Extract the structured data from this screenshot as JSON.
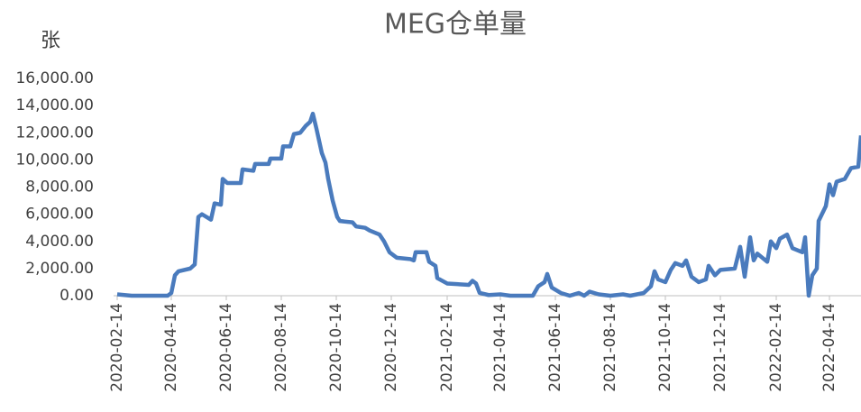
{
  "chart_data": {
    "type": "line",
    "title": "MEG仓单量",
    "y_label": "张",
    "series": [
      {
        "name": "MEG仓单量",
        "color": "#4a7bbd",
        "x": [
          "2020-02-14",
          "2020-03-01",
          "2020-04-10",
          "2020-04-14",
          "2020-04-18",
          "2020-04-22",
          "2020-05-05",
          "2020-05-10",
          "2020-05-14",
          "2020-05-18",
          "2020-05-28",
          "2020-06-01",
          "2020-06-08",
          "2020-06-10",
          "2020-06-15",
          "2020-06-30",
          "2020-07-02",
          "2020-07-14",
          "2020-07-16",
          "2020-07-31",
          "2020-08-02",
          "2020-08-14",
          "2020-08-16",
          "2020-08-24",
          "2020-08-28",
          "2020-09-04",
          "2020-09-10",
          "2020-09-15",
          "2020-09-18",
          "2020-09-22",
          "2020-09-28",
          "2020-10-02",
          "2020-10-05",
          "2020-10-10",
          "2020-10-15",
          "2020-10-18",
          "2020-11-01",
          "2020-11-05",
          "2020-11-15",
          "2020-11-20",
          "2020-12-01",
          "2020-12-06",
          "2020-12-12",
          "2020-12-20",
          "2021-01-04",
          "2021-01-08",
          "2021-01-10",
          "2021-01-22",
          "2021-01-25",
          "2021-02-01",
          "2021-02-03",
          "2021-02-14",
          "2021-03-10",
          "2021-03-14",
          "2021-03-18",
          "2021-03-22",
          "2021-04-01",
          "2021-04-14",
          "2021-04-25",
          "2021-05-20",
          "2021-05-26",
          "2021-06-02",
          "2021-06-05",
          "2021-06-10",
          "2021-06-20",
          "2021-06-30",
          "2021-07-10",
          "2021-07-16",
          "2021-07-22",
          "2021-08-01",
          "2021-08-14",
          "2021-08-28",
          "2021-09-05",
          "2021-09-20",
          "2021-09-28",
          "2021-10-02",
          "2021-10-06",
          "2021-10-14",
          "2021-10-20",
          "2021-10-25",
          "2021-11-02",
          "2021-11-06",
          "2021-11-12",
          "2021-11-20",
          "2021-11-28",
          "2021-12-01",
          "2021-12-08",
          "2021-12-14",
          "2021-12-30",
          "2022-01-05",
          "2022-01-10",
          "2022-01-16",
          "2022-01-20",
          "2022-01-24",
          "2022-02-04",
          "2022-02-08",
          "2022-02-14",
          "2022-02-18",
          "2022-02-26",
          "2022-03-04",
          "2022-03-15",
          "2022-03-18",
          "2022-03-22",
          "2022-03-26",
          "2022-03-31",
          "2022-04-02",
          "2022-04-10",
          "2022-04-14",
          "2022-04-18",
          "2022-04-22",
          "2022-05-01",
          "2022-05-08",
          "2022-05-16",
          "2022-05-19"
        ],
        "values": [
          100,
          0,
          0,
          200,
          1500,
          1800,
          2000,
          2300,
          5800,
          6000,
          5600,
          6800,
          6700,
          8600,
          8300,
          8300,
          9300,
          9200,
          9700,
          9700,
          10100,
          10100,
          11000,
          11000,
          11900,
          12000,
          12500,
          12800,
          13400,
          12300,
          10500,
          9800,
          8600,
          7000,
          5800,
          5500,
          5400,
          5100,
          5000,
          4800,
          4500,
          4000,
          3200,
          2800,
          2700,
          2600,
          3200,
          3200,
          2500,
          2200,
          1300,
          900,
          800,
          1100,
          900,
          200,
          50,
          100,
          0,
          0,
          700,
          1000,
          1600,
          600,
          200,
          0,
          200,
          0,
          300,
          100,
          0,
          100,
          0,
          200,
          700,
          1800,
          1200,
          1000,
          1900,
          2400,
          2200,
          2600,
          1400,
          1000,
          1200,
          2200,
          1500,
          1900,
          2000,
          3600,
          1400,
          4300,
          2600,
          3100,
          2500,
          4000,
          3500,
          4200,
          4500,
          3500,
          3200,
          4300,
          0,
          1500,
          2000,
          5500,
          6600,
          8200,
          7400,
          8400,
          8600,
          9400,
          9500,
          11800
        ]
      }
    ],
    "xlim": [
      "2020-02-14",
      "2022-05-19"
    ],
    "xticks": [
      "2020-02-14",
      "2020-04-14",
      "2020-06-14",
      "2020-08-14",
      "2020-10-14",
      "2020-12-14",
      "2021-02-14",
      "2021-04-14",
      "2021-06-14",
      "2021-08-14",
      "2021-10-14",
      "2021-12-14",
      "2022-02-14",
      "2022-04-14"
    ],
    "ylim": [
      0,
      16000
    ],
    "yticks": [
      {
        "value": 0,
        "label": "0.00"
      },
      {
        "value": 2000,
        "label": "2,000.00"
      },
      {
        "value": 4000,
        "label": "4,000.00"
      },
      {
        "value": 6000,
        "label": "6,000.00"
      },
      {
        "value": 8000,
        "label": "8,000.00"
      },
      {
        "value": 10000,
        "label": "10,000.00"
      },
      {
        "value": 12000,
        "label": "12,000.00"
      },
      {
        "value": 14000,
        "label": "14,000.00"
      },
      {
        "value": 16000,
        "label": "16,000.00"
      }
    ],
    "grid": false
  }
}
